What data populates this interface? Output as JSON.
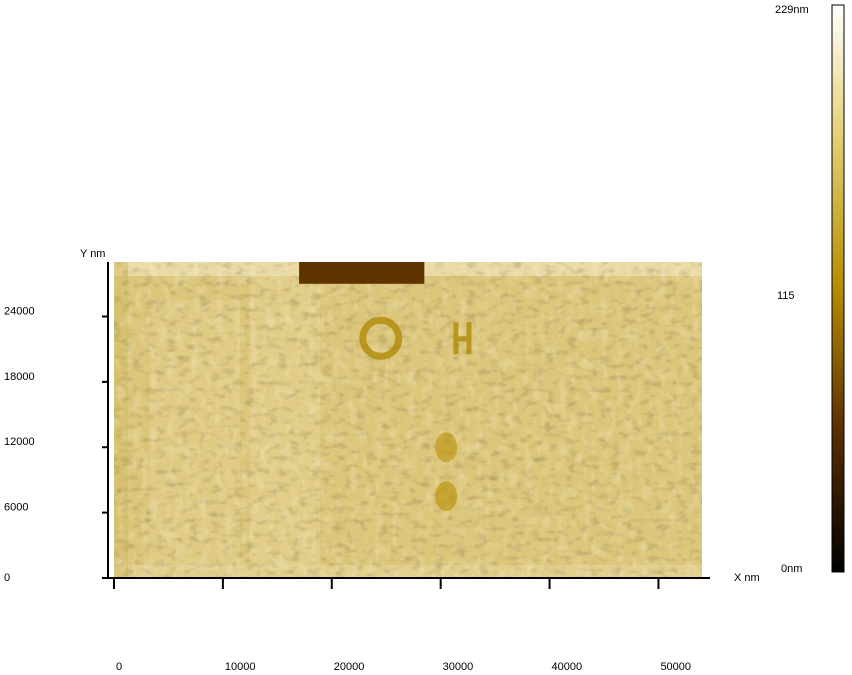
{
  "chart_data": {
    "type": "heatmap",
    "title": "",
    "xlabel": "X nm",
    "ylabel": "Y nm",
    "x_range": [
      0,
      54000
    ],
    "y_range": [
      0,
      29000
    ],
    "x_ticks": [
      0,
      10000,
      20000,
      30000,
      40000,
      50000
    ],
    "x_tick_labels": [
      "0",
      "10000",
      "20000",
      "30000",
      "40000",
      "50000"
    ],
    "y_ticks": [
      0,
      6000,
      12000,
      18000,
      24000
    ],
    "y_tick_labels": [
      "0",
      "6000",
      "12000",
      "18000",
      "24000"
    ],
    "colorbar": {
      "min": 0,
      "mid": 115,
      "max": 229,
      "unit": "nm",
      "label_max": "229nm",
      "label_mid": "115",
      "label_min": "0nm",
      "colors": [
        "#000000",
        "#5a2e00",
        "#b58d00",
        "#e6d27a",
        "#ffffff"
      ]
    },
    "surface": {
      "base_height_nm": 150,
      "features": [
        {
          "name": "dark-bar-top",
          "x": [
            17000,
            28500
          ],
          "y": [
            27000,
            29000
          ],
          "height_nm": 60
        },
        {
          "name": "ring-feature",
          "x": [
            24500
          ],
          "y": [
            22000
          ],
          "height_nm": 110
        },
        {
          "name": "H-feature",
          "x": [
            32000
          ],
          "y": [
            22000
          ],
          "height_nm": 110
        },
        {
          "name": "dark-spot-1",
          "x": [
            30500
          ],
          "y": [
            12000
          ],
          "height_nm": 120
        },
        {
          "name": "dark-spot-2",
          "x": [
            30500
          ],
          "y": [
            7500
          ],
          "height_nm": 115
        }
      ]
    }
  }
}
